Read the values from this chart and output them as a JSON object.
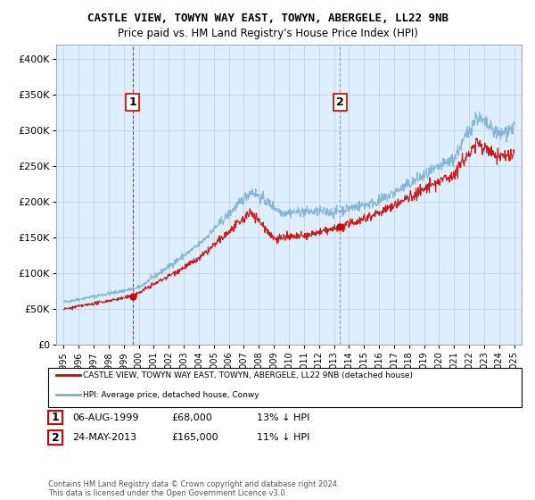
{
  "title": "CASTLE VIEW, TOWYN WAY EAST, TOWYN, ABERGELE, LL22 9NB",
  "subtitle": "Price paid vs. HM Land Registry's House Price Index (HPI)",
  "legend_line1": "CASTLE VIEW, TOWYN WAY EAST, TOWYN, ABERGELE, LL22 9NB (detached house)",
  "legend_line2": "HPI: Average price, detached house, Conwy",
  "annotation1_label": "1",
  "annotation1_date": "06-AUG-1999",
  "annotation1_price": "£68,000",
  "annotation1_hpi": "13% ↓ HPI",
  "annotation2_label": "2",
  "annotation2_date": "24-MAY-2013",
  "annotation2_price": "£165,000",
  "annotation2_hpi": "11% ↓ HPI",
  "footnote": "Contains HM Land Registry data © Crown copyright and database right 2024.\nThis data is licensed under the Open Government Licence v3.0.",
  "sale1_x": 1999.6,
  "sale1_y": 68000,
  "sale2_x": 2013.4,
  "sale2_y": 165000,
  "red_color": "#cc0000",
  "blue_color": "#7ab0d4",
  "chart_bg_color": "#ddeeff",
  "background_color": "#ffffff",
  "grid_color": "#cccccc",
  "ylim": [
    0,
    420000
  ],
  "xlim": [
    1994.5,
    2025.5
  ],
  "yticks": [
    0,
    50000,
    100000,
    150000,
    200000,
    250000,
    300000,
    350000,
    400000
  ],
  "xticks": [
    1995,
    1996,
    1997,
    1998,
    1999,
    2000,
    2001,
    2002,
    2003,
    2004,
    2005,
    2006,
    2007,
    2008,
    2009,
    2010,
    2011,
    2012,
    2013,
    2014,
    2015,
    2016,
    2017,
    2018,
    2019,
    2020,
    2021,
    2022,
    2023,
    2024,
    2025
  ],
  "num1_y": 340000,
  "num2_y": 340000
}
